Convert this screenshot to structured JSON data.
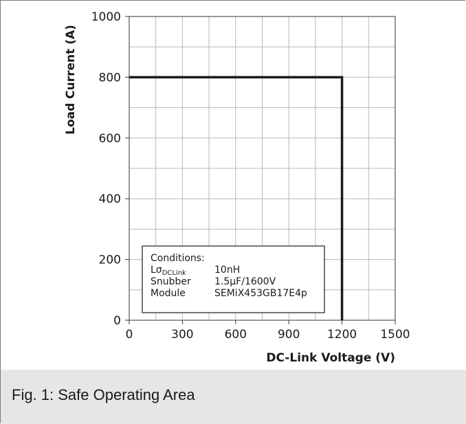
{
  "chart_data": {
    "type": "line",
    "title": "",
    "xlabel": "DC-Link Voltage (V)",
    "ylabel": "Load Current (A)",
    "xlim": [
      0,
      1500
    ],
    "ylim": [
      0,
      1000
    ],
    "x_ticks": [
      0,
      300,
      600,
      900,
      1200,
      1500
    ],
    "y_ticks": [
      0,
      200,
      400,
      600,
      800,
      1000
    ],
    "x_minor_step": 150,
    "y_minor_step": 100,
    "grid": true,
    "series": [
      {
        "name": "",
        "x": [
          0,
          1200,
          1200
        ],
        "y": [
          800,
          800,
          0
        ]
      }
    ],
    "annotation": {
      "heading": "Conditions:",
      "rows": [
        {
          "label": "Lσ",
          "label_sub": "DCLink",
          "value": "10nH"
        },
        {
          "label": "Snubber",
          "value": "1.5µF/1600V"
        },
        {
          "label": "Module",
          "value": "SEMiX453GB17E4p"
        }
      ]
    }
  },
  "caption": "Fig. 1: Safe Operating Area",
  "colors": {
    "line": "#1a1a1a",
    "grid": "#b8b8b8",
    "caption_bg": "#e6e6e6"
  }
}
